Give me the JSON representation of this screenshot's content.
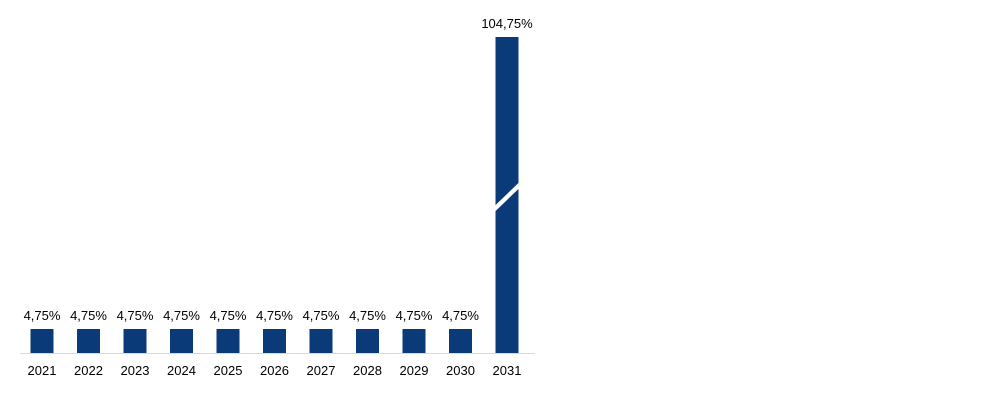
{
  "chart_data": {
    "type": "bar",
    "categories": [
      "2021",
      "2022",
      "2023",
      "2024",
      "2025",
      "2026",
      "2027",
      "2028",
      "2029",
      "2030",
      "2031"
    ],
    "values": [
      4.75,
      4.75,
      4.75,
      4.75,
      4.75,
      4.75,
      4.75,
      4.75,
      4.75,
      4.75,
      104.75
    ],
    "value_labels": [
      "4,75%",
      "4,75%",
      "4,75%",
      "4,75%",
      "4,75%",
      "4,75%",
      "4,75%",
      "4,75%",
      "4,75%",
      "4,75%",
      "104,75%"
    ],
    "axis_break": true,
    "bar_color": "#0b3a78",
    "axis_color": "#d9d9d9",
    "grid": false,
    "legend": "none"
  }
}
